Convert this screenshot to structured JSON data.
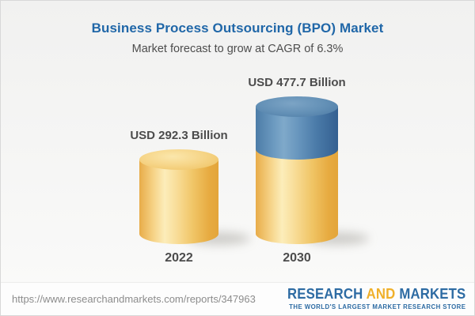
{
  "header": {
    "title": "Business Process Outsourcing (BPO) Market",
    "subtitle": "Market forecast to grow at CAGR of 6.3%"
  },
  "chart_data": {
    "type": "bar",
    "variant": "3d-cylinder",
    "title": "Business Process Outsourcing (BPO) Market",
    "subtitle": "Market forecast to grow at CAGR of 6.3%",
    "unit": "USD Billion",
    "cagr_percent": 6.3,
    "categories": [
      "2022",
      "2030"
    ],
    "values": [
      292.3,
      477.7
    ],
    "value_labels": [
      "USD 292.3 Billion",
      "USD 477.7 Billion"
    ],
    "stacking_note": "2030 bar drawn as gold base equal to 2022 value with blue growth segment on top",
    "axes": "none",
    "gridlines": "off",
    "legend": "none",
    "colors": {
      "bar_gold": "#F2C35F",
      "bar_blue": "#4E7EA8",
      "title_blue": "#2067A8",
      "label_gray": "#4C4C4C"
    }
  },
  "footer": {
    "url": "https://www.researchandmarkets.com/reports/347963",
    "logo": {
      "word1": "RESEARCH",
      "word2": "AND",
      "word3": "MARKETS",
      "tagline": "THE WORLD'S LARGEST MARKET RESEARCH STORE"
    },
    "colors": {
      "logo_blue": "#2D6BA3",
      "logo_gold": "#F0B02A",
      "url_gray": "#8C8C8C"
    }
  }
}
